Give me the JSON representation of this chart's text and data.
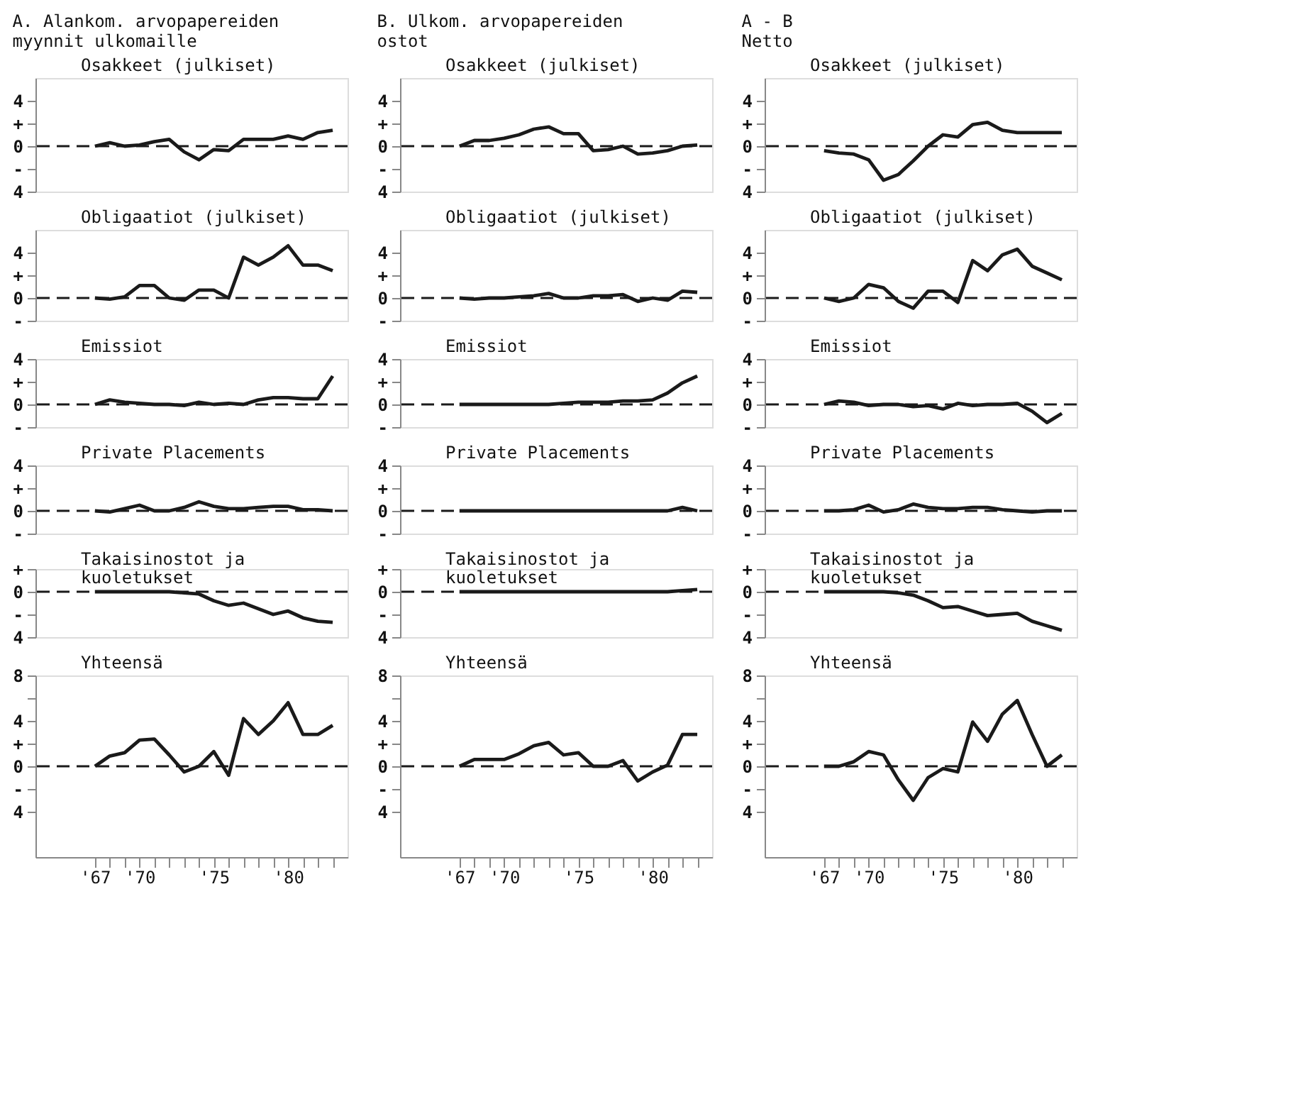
{
  "chart_data": [
    {
      "type": "line",
      "title": "A. Alankom. arvopapereiden\nmyynnit ulkomaille",
      "annotations": [
        "Osakkeet (julkiset)"
      ],
      "color": "#1a1a1a",
      "x": [
        1967,
        1968,
        1969,
        1970,
        1971,
        1972,
        1973,
        1974,
        1975,
        1976,
        1977,
        1978,
        1979,
        1980,
        1981,
        1982,
        1983
      ],
      "values": [
        0,
        0.3,
        0,
        0.1,
        0.4,
        0.6,
        -0.5,
        -1.2,
        -0.3,
        -0.4,
        0.6,
        0.6,
        0.6,
        0.9,
        0.6,
        1.2,
        1.4
      ],
      "xlim": [
        1963,
        1984
      ],
      "ylim": [
        -4,
        6
      ],
      "yticks": [
        4,
        {
          "value": 2,
          "label": "+"
        },
        0,
        {
          "value": -2,
          "label": "-"
        },
        {
          "value": -4,
          "label": "4"
        }
      ],
      "tick_labels": "y",
      "ref_lines": [
        {
          "axis": "y",
          "value": 0,
          "line_style": "dashed"
        }
      ]
    },
    {
      "type": "line",
      "annotations": [
        "Obligaatiot (julkiset)"
      ],
      "color": "#1a1a1a",
      "x": [
        1967,
        1968,
        1969,
        1970,
        1971,
        1972,
        1973,
        1974,
        1975,
        1976,
        1977,
        1978,
        1979,
        1980,
        1981,
        1982,
        1983
      ],
      "values": [
        0,
        -0.1,
        0.1,
        1.1,
        1.1,
        0,
        -0.2,
        0.7,
        0.7,
        0,
        3.6,
        2.9,
        3.6,
        4.6,
        2.9,
        2.9,
        2.4
      ],
      "xlim": [
        1963,
        1984
      ],
      "ylim": [
        -2,
        6
      ],
      "yticks": [
        4,
        {
          "value": 2,
          "label": "+"
        },
        0,
        {
          "value": -2,
          "label": "-"
        }
      ],
      "tick_labels": "y",
      "ref_lines": [
        {
          "axis": "y",
          "value": 0,
          "line_style": "dashed"
        }
      ]
    },
    {
      "type": "line",
      "annotations": [
        "Emissiot"
      ],
      "color": "#1a1a1a",
      "x": [
        1967,
        1968,
        1969,
        1970,
        1971,
        1972,
        1973,
        1974,
        1975,
        1976,
        1977,
        1978,
        1979,
        1980,
        1981,
        1982,
        1983
      ],
      "values": [
        0,
        0.4,
        0.2,
        0.1,
        0,
        0,
        -0.1,
        0.2,
        0,
        0.1,
        0,
        0.4,
        0.6,
        0.6,
        0.5,
        0.5,
        2.5
      ],
      "xlim": [
        1963,
        1984
      ],
      "ylim": [
        -2,
        4
      ],
      "yticks": [
        4,
        {
          "value": 2,
          "label": "+"
        },
        0,
        {
          "value": -2,
          "label": "-"
        }
      ],
      "tick_labels": "y",
      "ref_lines": [
        {
          "axis": "y",
          "value": 0,
          "line_style": "dashed"
        }
      ]
    },
    {
      "type": "line",
      "annotations": [
        "Private Placements"
      ],
      "color": "#1a1a1a",
      "x": [
        1967,
        1968,
        1969,
        1970,
        1971,
        1972,
        1973,
        1974,
        1975,
        1976,
        1977,
        1978,
        1979,
        1980,
        1981,
        1982,
        1983
      ],
      "values": [
        0,
        -0.1,
        0.2,
        0.5,
        0,
        0,
        0.3,
        0.8,
        0.4,
        0.2,
        0.2,
        0.3,
        0.4,
        0.4,
        0.1,
        0.1,
        0
      ],
      "xlim": [
        1963,
        1984
      ],
      "ylim": [
        -2,
        4
      ],
      "yticks": [
        4,
        {
          "value": 2,
          "label": "+"
        },
        0,
        {
          "value": -2,
          "label": "-"
        }
      ],
      "tick_labels": "y",
      "ref_lines": [
        {
          "axis": "y",
          "value": 0,
          "line_style": "dashed"
        }
      ]
    },
    {
      "type": "line",
      "annotations": [
        "Takaisinostot ja\nkuoletukset"
      ],
      "color": "#1a1a1a",
      "x": [
        1967,
        1968,
        1969,
        1970,
        1971,
        1972,
        1973,
        1974,
        1975,
        1976,
        1977,
        1978,
        1979,
        1980,
        1981,
        1982,
        1983
      ],
      "values": [
        0,
        0,
        0,
        0,
        0,
        0,
        -0.1,
        -0.2,
        -0.8,
        -1.2,
        -1.0,
        -1.5,
        -2.0,
        -1.7,
        -2.3,
        -2.6,
        -2.7
      ],
      "xlim": [
        1963,
        1984
      ],
      "ylim": [
        -4,
        2
      ],
      "yticks": [
        {
          "value": 2,
          "label": "+"
        },
        0,
        {
          "value": -2,
          "label": "-"
        },
        {
          "value": -4,
          "label": "4"
        }
      ],
      "tick_labels": "y",
      "ref_lines": [
        {
          "axis": "y",
          "value": 0,
          "line_style": "dashed"
        }
      ]
    },
    {
      "type": "line",
      "annotations": [
        "Yhteensä"
      ],
      "color": "#1a1a1a",
      "x": [
        1967,
        1968,
        1969,
        1970,
        1971,
        1972,
        1973,
        1974,
        1975,
        1976,
        1977,
        1978,
        1979,
        1980,
        1981,
        1982,
        1983
      ],
      "values": [
        0,
        0.9,
        1.2,
        2.3,
        2.4,
        1.0,
        -0.5,
        0,
        1.3,
        -0.8,
        4.2,
        2.8,
        4.0,
        5.6,
        2.8,
        2.8,
        3.6
      ],
      "xlim": [
        1963,
        1984
      ],
      "ylim": [
        -8,
        8
      ],
      "yticks": [
        8,
        {
          "value": 6,
          "label": null
        },
        4,
        {
          "value": 2,
          "label": "+"
        },
        0,
        {
          "value": -2,
          "label": "-"
        },
        {
          "value": -4,
          "label": "4"
        }
      ],
      "xticks": [
        {
          "value": 1967,
          "label": "'67"
        },
        {
          "value": 1968,
          "label": null
        },
        {
          "value": 1969,
          "label": null
        },
        {
          "value": 1970,
          "label": "'70"
        },
        {
          "value": 1971,
          "label": null
        },
        {
          "value": 1972,
          "label": null
        },
        {
          "value": 1973,
          "label": null
        },
        {
          "value": 1974,
          "label": null
        },
        {
          "value": 1975,
          "label": "'75"
        },
        {
          "value": 1976,
          "label": null
        },
        {
          "value": 1977,
          "label": null
        },
        {
          "value": 1978,
          "label": null
        },
        {
          "value": 1979,
          "label": null
        },
        {
          "value": 1980,
          "label": "'80"
        },
        {
          "value": 1981,
          "label": null
        },
        {
          "value": 1982,
          "label": null
        },
        {
          "value": 1983,
          "label": null
        }
      ],
      "ref_lines": [
        {
          "axis": "y",
          "value": 0,
          "line_style": "dashed"
        }
      ]
    },
    {
      "type": "line",
      "title": "B. Ulkom. arvopapereiden\nostot",
      "annotations": [
        "Osakkeet (julkiset)"
      ],
      "color": "#1a1a1a",
      "x": [
        1967,
        1968,
        1969,
        1970,
        1971,
        1972,
        1973,
        1974,
        1975,
        1976,
        1977,
        1978,
        1979,
        1980,
        1981,
        1982,
        1983
      ],
      "values": [
        0,
        0.5,
        0.5,
        0.7,
        1.0,
        1.5,
        1.7,
        1.1,
        1.1,
        -0.4,
        -0.3,
        0,
        -0.7,
        -0.6,
        -0.4,
        0,
        0.1
      ],
      "xlim": [
        1963,
        1984
      ],
      "ylim": [
        -4,
        6
      ],
      "yticks": [
        4,
        {
          "value": 2,
          "label": "+"
        },
        0,
        {
          "value": -2,
          "label": "-"
        },
        {
          "value": -4,
          "label": "4"
        }
      ],
      "tick_labels": "y",
      "ref_lines": [
        {
          "axis": "y",
          "value": 0,
          "line_style": "dashed"
        }
      ]
    },
    {
      "type": "line",
      "annotations": [
        "Obligaatiot (julkiset)"
      ],
      "color": "#1a1a1a",
      "x": [
        1967,
        1968,
        1969,
        1970,
        1971,
        1972,
        1973,
        1974,
        1975,
        1976,
        1977,
        1978,
        1979,
        1980,
        1981,
        1982,
        1983
      ],
      "values": [
        0,
        -0.1,
        0,
        0,
        0.1,
        0.2,
        0.4,
        0,
        0,
        0.2,
        0.2,
        0.3,
        -0.3,
        0,
        -0.2,
        0.6,
        0.5
      ],
      "xlim": [
        1963,
        1984
      ],
      "ylim": [
        -2,
        6
      ],
      "yticks": [
        4,
        {
          "value": 2,
          "label": "+"
        },
        0,
        {
          "value": -2,
          "label": "-"
        }
      ],
      "tick_labels": "y",
      "ref_lines": [
        {
          "axis": "y",
          "value": 0,
          "line_style": "dashed"
        }
      ]
    },
    {
      "type": "line",
      "annotations": [
        "Emissiot"
      ],
      "color": "#1a1a1a",
      "x": [
        1967,
        1968,
        1969,
        1970,
        1971,
        1972,
        1973,
        1974,
        1975,
        1976,
        1977,
        1978,
        1979,
        1980,
        1981,
        1982,
        1983
      ],
      "values": [
        0,
        0,
        0,
        0,
        0,
        0,
        0,
        0.1,
        0.2,
        0.2,
        0.2,
        0.3,
        0.3,
        0.4,
        1.0,
        1.9,
        2.5
      ],
      "xlim": [
        1963,
        1984
      ],
      "ylim": [
        -2,
        4
      ],
      "yticks": [
        4,
        {
          "value": 2,
          "label": "+"
        },
        0,
        {
          "value": -2,
          "label": "-"
        }
      ],
      "tick_labels": "y",
      "ref_lines": [
        {
          "axis": "y",
          "value": 0,
          "line_style": "dashed"
        }
      ]
    },
    {
      "type": "line",
      "annotations": [
        "Private Placements"
      ],
      "color": "#1a1a1a",
      "x": [
        1967,
        1968,
        1969,
        1970,
        1971,
        1972,
        1973,
        1974,
        1975,
        1976,
        1977,
        1978,
        1979,
        1980,
        1981,
        1982,
        1983
      ],
      "values": [
        0,
        0,
        0,
        0,
        0,
        0,
        0,
        0,
        0,
        0,
        0,
        0,
        0,
        0,
        0,
        0.3,
        0
      ],
      "xlim": [
        1963,
        1984
      ],
      "ylim": [
        -2,
        4
      ],
      "yticks": [
        4,
        {
          "value": 2,
          "label": "+"
        },
        0,
        {
          "value": -2,
          "label": "-"
        }
      ],
      "tick_labels": "y",
      "ref_lines": [
        {
          "axis": "y",
          "value": 0,
          "line_style": "dashed"
        }
      ]
    },
    {
      "type": "line",
      "annotations": [
        "Takaisinostot ja\nkuoletukset"
      ],
      "color": "#1a1a1a",
      "x": [
        1967,
        1968,
        1969,
        1970,
        1971,
        1972,
        1973,
        1974,
        1975,
        1976,
        1977,
        1978,
        1979,
        1980,
        1981,
        1982,
        1983
      ],
      "values": [
        0,
        0,
        0,
        0,
        0,
        0,
        0,
        0,
        0,
        0,
        0,
        0,
        0,
        0,
        0,
        0.1,
        0.2
      ],
      "xlim": [
        1963,
        1984
      ],
      "ylim": [
        -4,
        2
      ],
      "yticks": [
        {
          "value": 2,
          "label": "+"
        },
        0,
        {
          "value": -2,
          "label": "-"
        },
        {
          "value": -4,
          "label": "4"
        }
      ],
      "tick_labels": "y",
      "ref_lines": [
        {
          "axis": "y",
          "value": 0,
          "line_style": "dashed"
        }
      ]
    },
    {
      "type": "line",
      "annotations": [
        "Yhteensä"
      ],
      "color": "#1a1a1a",
      "x": [
        1967,
        1968,
        1969,
        1970,
        1971,
        1972,
        1973,
        1974,
        1975,
        1976,
        1977,
        1978,
        1979,
        1980,
        1981,
        1982,
        1983
      ],
      "values": [
        0,
        0.6,
        0.6,
        0.6,
        1.1,
        1.8,
        2.1,
        1.0,
        1.2,
        0,
        0,
        0.5,
        -1.3,
        -0.5,
        0.1,
        2.8,
        2.8
      ],
      "xlim": [
        1963,
        1984
      ],
      "ylim": [
        -8,
        8
      ],
      "yticks": [
        8,
        {
          "value": 6,
          "label": null
        },
        4,
        {
          "value": 2,
          "label": "+"
        },
        0,
        {
          "value": -2,
          "label": "-"
        },
        {
          "value": -4,
          "label": "4"
        }
      ],
      "xticks": [
        {
          "value": 1967,
          "label": "'67"
        },
        {
          "value": 1968,
          "label": null
        },
        {
          "value": 1969,
          "label": null
        },
        {
          "value": 1970,
          "label": "'70"
        },
        {
          "value": 1971,
          "label": null
        },
        {
          "value": 1972,
          "label": null
        },
        {
          "value": 1973,
          "label": null
        },
        {
          "value": 1974,
          "label": null
        },
        {
          "value": 1975,
          "label": "'75"
        },
        {
          "value": 1976,
          "label": null
        },
        {
          "value": 1977,
          "label": null
        },
        {
          "value": 1978,
          "label": null
        },
        {
          "value": 1979,
          "label": null
        },
        {
          "value": 1980,
          "label": "'80"
        },
        {
          "value": 1981,
          "label": null
        },
        {
          "value": 1982,
          "label": null
        },
        {
          "value": 1983,
          "label": null
        }
      ],
      "ref_lines": [
        {
          "axis": "y",
          "value": 0,
          "line_style": "dashed"
        }
      ]
    },
    {
      "type": "line",
      "title": "A - B\nNetto",
      "annotations": [
        "Osakkeet (julkiset)"
      ],
      "color": "#1a1a1a",
      "x": [
        1967,
        1968,
        1969,
        1970,
        1971,
        1972,
        1973,
        1974,
        1975,
        1976,
        1977,
        1978,
        1979,
        1980,
        1981,
        1982,
        1983
      ],
      "values": [
        -0.4,
        -0.6,
        -0.7,
        -1.2,
        -3.0,
        -2.5,
        -1.3,
        0,
        1.0,
        0.8,
        1.9,
        2.1,
        1.4,
        1.2,
        1.2,
        1.2,
        1.2
      ],
      "xlim": [
        1963,
        1984
      ],
      "ylim": [
        -4,
        6
      ],
      "yticks": [
        4,
        {
          "value": 2,
          "label": "+"
        },
        0,
        {
          "value": -2,
          "label": "-"
        },
        {
          "value": -4,
          "label": "4"
        }
      ],
      "tick_labels": "y",
      "ref_lines": [
        {
          "axis": "y",
          "value": 0,
          "line_style": "dashed"
        }
      ]
    },
    {
      "type": "line",
      "annotations": [
        "Obligaatiot (julkiset)"
      ],
      "color": "#1a1a1a",
      "x": [
        1967,
        1968,
        1969,
        1970,
        1971,
        1972,
        1973,
        1974,
        1975,
        1976,
        1977,
        1978,
        1979,
        1980,
        1981,
        1982,
        1983
      ],
      "values": [
        0,
        -0.3,
        0,
        1.2,
        0.9,
        -0.3,
        -0.9,
        0.6,
        0.6,
        -0.4,
        3.3,
        2.4,
        3.8,
        4.3,
        2.8,
        2.2,
        1.6
      ],
      "xlim": [
        1963,
        1984
      ],
      "ylim": [
        -2,
        6
      ],
      "yticks": [
        4,
        {
          "value": 2,
          "label": "+"
        },
        0,
        {
          "value": -2,
          "label": "-"
        }
      ],
      "tick_labels": "y",
      "ref_lines": [
        {
          "axis": "y",
          "value": 0,
          "line_style": "dashed"
        }
      ]
    },
    {
      "type": "line",
      "annotations": [
        "Emissiot"
      ],
      "color": "#1a1a1a",
      "x": [
        1967,
        1968,
        1969,
        1970,
        1971,
        1972,
        1973,
        1974,
        1975,
        1976,
        1977,
        1978,
        1979,
        1980,
        1981,
        1982,
        1983
      ],
      "values": [
        0,
        0.3,
        0.2,
        -0.1,
        0,
        0,
        -0.2,
        -0.1,
        -0.4,
        0.1,
        -0.1,
        0,
        0,
        0.1,
        -0.6,
        -1.6,
        -0.8
      ],
      "xlim": [
        1963,
        1984
      ],
      "ylim": [
        -2,
        4
      ],
      "yticks": [
        4,
        {
          "value": 2,
          "label": "+"
        },
        0,
        {
          "value": -2,
          "label": "-"
        }
      ],
      "tick_labels": "y",
      "ref_lines": [
        {
          "axis": "y",
          "value": 0,
          "line_style": "dashed"
        }
      ]
    },
    {
      "type": "line",
      "annotations": [
        "Private Placements"
      ],
      "color": "#1a1a1a",
      "x": [
        1967,
        1968,
        1969,
        1970,
        1971,
        1972,
        1973,
        1974,
        1975,
        1976,
        1977,
        1978,
        1979,
        1980,
        1981,
        1982,
        1983
      ],
      "values": [
        0,
        0,
        0.1,
        0.5,
        -0.1,
        0.1,
        0.6,
        0.3,
        0.2,
        0.2,
        0.3,
        0.3,
        0.1,
        0,
        -0.1,
        0,
        0
      ],
      "xlim": [
        1963,
        1984
      ],
      "ylim": [
        -2,
        4
      ],
      "yticks": [
        4,
        {
          "value": 2,
          "label": "+"
        },
        0,
        {
          "value": -2,
          "label": "-"
        }
      ],
      "tick_labels": "y",
      "ref_lines": [
        {
          "axis": "y",
          "value": 0,
          "line_style": "dashed"
        }
      ]
    },
    {
      "type": "line",
      "annotations": [
        "Takaisinostot ja\nkuoletukset"
      ],
      "color": "#1a1a1a",
      "x": [
        1967,
        1968,
        1969,
        1970,
        1971,
        1972,
        1973,
        1974,
        1975,
        1976,
        1977,
        1978,
        1979,
        1980,
        1981,
        1982,
        1983
      ],
      "values": [
        0,
        0,
        0,
        0,
        0,
        -0.1,
        -0.3,
        -0.8,
        -1.4,
        -1.3,
        -1.7,
        -2.1,
        -2.0,
        -1.9,
        -2.6,
        -3.0,
        -3.4
      ],
      "xlim": [
        1963,
        1984
      ],
      "ylim": [
        -4,
        2
      ],
      "yticks": [
        {
          "value": 2,
          "label": "+"
        },
        0,
        {
          "value": -2,
          "label": "-"
        },
        {
          "value": -4,
          "label": "4"
        }
      ],
      "tick_labels": "y",
      "ref_lines": [
        {
          "axis": "y",
          "value": 0,
          "line_style": "dashed"
        }
      ]
    },
    {
      "type": "line",
      "annotations": [
        "Yhteensä"
      ],
      "color": "#1a1a1a",
      "x": [
        1967,
        1968,
        1969,
        1970,
        1971,
        1972,
        1973,
        1974,
        1975,
        1976,
        1977,
        1978,
        1979,
        1980,
        1981,
        1982,
        1983
      ],
      "values": [
        0,
        0,
        0.4,
        1.3,
        1.0,
        -1.2,
        -3.0,
        -1.0,
        -0.2,
        -0.5,
        3.9,
        2.2,
        4.6,
        5.8,
        2.8,
        0,
        1.0
      ],
      "xlim": [
        1963,
        1984
      ],
      "ylim": [
        -8,
        8
      ],
      "yticks": [
        8,
        {
          "value": 6,
          "label": null
        },
        4,
        {
          "value": 2,
          "label": "+"
        },
        0,
        {
          "value": -2,
          "label": "-"
        },
        {
          "value": -4,
          "label": "4"
        }
      ],
      "xticks": [
        {
          "value": 1967,
          "label": "'67"
        },
        {
          "value": 1968,
          "label": null
        },
        {
          "value": 1969,
          "label": null
        },
        {
          "value": 1970,
          "label": "'70"
        },
        {
          "value": 1971,
          "label": null
        },
        {
          "value": 1972,
          "label": null
        },
        {
          "value": 1973,
          "label": null
        },
        {
          "value": 1974,
          "label": null
        },
        {
          "value": 1975,
          "label": "'75"
        },
        {
          "value": 1976,
          "label": null
        },
        {
          "value": 1977,
          "label": null
        },
        {
          "value": 1978,
          "label": null
        },
        {
          "value": 1979,
          "label": null
        },
        {
          "value": 1980,
          "label": "'80"
        },
        {
          "value": 1981,
          "label": null
        },
        {
          "value": 1982,
          "label": null
        },
        {
          "value": 1983,
          "label": null
        }
      ],
      "ref_lines": [
        {
          "axis": "y",
          "value": 0,
          "line_style": "dashed"
        }
      ]
    }
  ]
}
